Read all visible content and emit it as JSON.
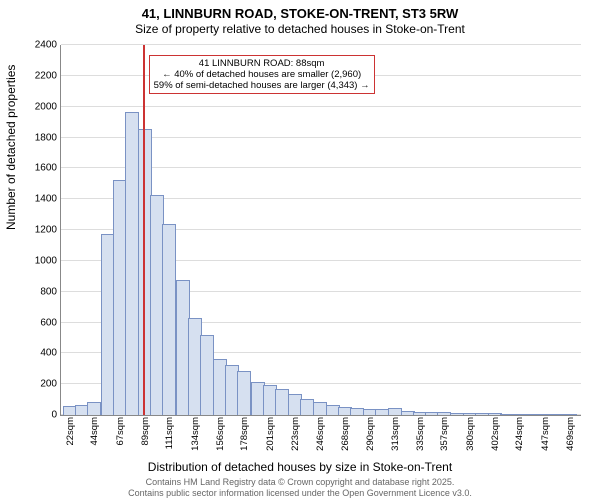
{
  "chart": {
    "type": "histogram",
    "title_main": "41, LINNBURN ROAD, STOKE-ON-TRENT, ST3 5RW",
    "title_sub": "Size of property relative to detached houses in Stoke-on-Trent",
    "y_label": "Number of detached properties",
    "x_label": "Distribution of detached houses by size in Stoke-on-Trent",
    "ylim": [
      0,
      2400
    ],
    "ytick_step": 200,
    "xticks": [
      22,
      44,
      67,
      89,
      111,
      134,
      156,
      178,
      201,
      223,
      246,
      268,
      290,
      313,
      335,
      357,
      380,
      402,
      424,
      447,
      469
    ],
    "xtick_suffix": "sqm",
    "bar_color_fill": "#d6e0f0",
    "bar_color_stroke": "#7a92c4",
    "grid_color": "#dddddd",
    "marker_color": "#cc3333",
    "marker_at_sqm": 88,
    "annotation": {
      "line1": "41 LINNBURN ROAD: 88sqm",
      "line2": "← 40% of detached houses are smaller (2,960)",
      "line3": "59% of semi-detached houses are larger (4,343) →",
      "border": "#cc3333"
    },
    "bars": [
      {
        "x": 22,
        "y": 50
      },
      {
        "x": 33,
        "y": 60
      },
      {
        "x": 44,
        "y": 80
      },
      {
        "x": 56,
        "y": 1170
      },
      {
        "x": 67,
        "y": 1520
      },
      {
        "x": 78,
        "y": 1960
      },
      {
        "x": 89,
        "y": 1850
      },
      {
        "x": 100,
        "y": 1420
      },
      {
        "x": 111,
        "y": 1230
      },
      {
        "x": 123,
        "y": 870
      },
      {
        "x": 134,
        "y": 620
      },
      {
        "x": 145,
        "y": 510
      },
      {
        "x": 156,
        "y": 360
      },
      {
        "x": 167,
        "y": 320
      },
      {
        "x": 178,
        "y": 280
      },
      {
        "x": 190,
        "y": 210
      },
      {
        "x": 201,
        "y": 190
      },
      {
        "x": 212,
        "y": 160
      },
      {
        "x": 223,
        "y": 130
      },
      {
        "x": 234,
        "y": 100
      },
      {
        "x": 246,
        "y": 80
      },
      {
        "x": 257,
        "y": 60
      },
      {
        "x": 268,
        "y": 45
      },
      {
        "x": 279,
        "y": 40
      },
      {
        "x": 290,
        "y": 35
      },
      {
        "x": 301,
        "y": 30
      },
      {
        "x": 313,
        "y": 40
      },
      {
        "x": 324,
        "y": 20
      },
      {
        "x": 335,
        "y": 15
      },
      {
        "x": 346,
        "y": 10
      },
      {
        "x": 357,
        "y": 10
      },
      {
        "x": 368,
        "y": 8
      },
      {
        "x": 380,
        "y": 8
      },
      {
        "x": 391,
        "y": 5
      },
      {
        "x": 402,
        "y": 5
      },
      {
        "x": 413,
        "y": 3
      },
      {
        "x": 424,
        "y": 3
      },
      {
        "x": 436,
        "y": 3
      },
      {
        "x": 447,
        "y": 2
      },
      {
        "x": 458,
        "y": 2
      },
      {
        "x": 469,
        "y": 2
      }
    ],
    "x_range": [
      15,
      480
    ]
  },
  "footer": {
    "line1": "Contains HM Land Registry data © Crown copyright and database right 2025.",
    "line2": "Contains public sector information licensed under the Open Government Licence v3.0."
  }
}
